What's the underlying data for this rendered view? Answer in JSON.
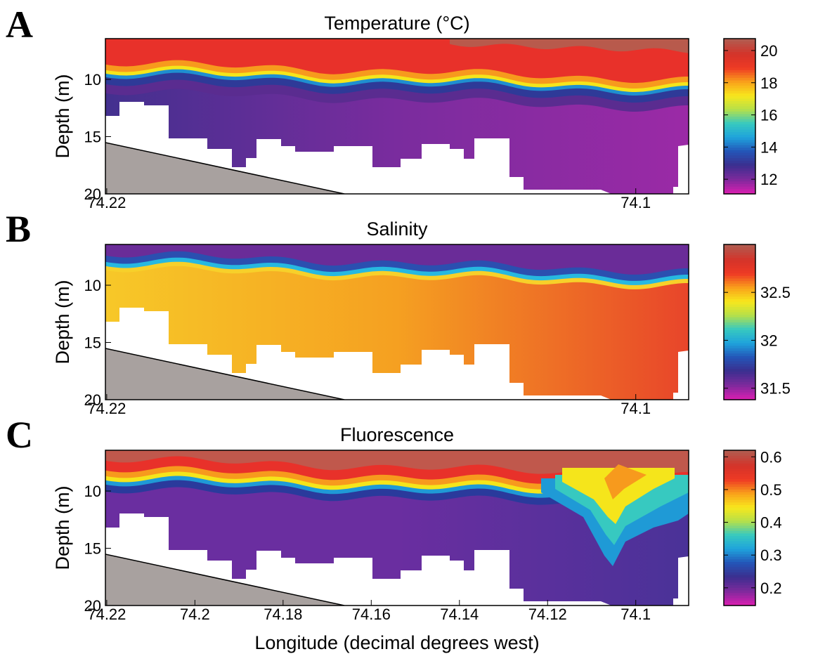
{
  "chart_data": [
    {
      "type": "contour",
      "panel_label": "A",
      "title": "Temperature (°C)",
      "ylabel": "Depth (m)",
      "xlim": [
        74.2203,
        74.088
      ],
      "xticks": [
        74.22,
        74.1
      ],
      "ylim": [
        20,
        6.44
      ],
      "yticks": [
        10,
        15,
        20
      ],
      "colorbar": {
        "clim": [
          11.09,
          20.74
        ],
        "ticks": [
          12,
          14,
          16,
          18,
          20
        ]
      },
      "colormap": [
        "#d61fb0",
        "#7b2a9c",
        "#3a2f8f",
        "#2456b8",
        "#1fa3dc",
        "#37c9c0",
        "#b5e04a",
        "#f8e71c",
        "#f9a11b",
        "#ee3a24",
        "#d4332a",
        "#b35a4e"
      ]
    },
    {
      "type": "contour",
      "panel_label": "B",
      "title": "Salinity",
      "ylabel": "Depth (m)",
      "xlim": [
        74.2203,
        74.088
      ],
      "xticks": [
        74.22,
        74.1
      ],
      "ylim": [
        20,
        6.44
      ],
      "yticks": [
        10,
        15,
        20
      ],
      "colorbar": {
        "clim": [
          31.38,
          33.0
        ],
        "ticks": [
          31.5,
          32,
          32.5
        ]
      },
      "colormap": [
        "#d61fb0",
        "#7b2a9c",
        "#3a2f8f",
        "#2456b8",
        "#1fa3dc",
        "#37c9c0",
        "#b5e04a",
        "#f8e71c",
        "#f9a11b",
        "#ee3a24",
        "#d4332a",
        "#b35a4e"
      ]
    },
    {
      "type": "contour",
      "panel_label": "C",
      "title": "Fluorescence",
      "ylabel": "Depth (m)",
      "xlabel": "Longitude (decimal degrees west)",
      "xlim": [
        74.2203,
        74.088
      ],
      "xticks": [
        74.22,
        74.2,
        74.18,
        74.16,
        74.14,
        74.12,
        74.1
      ],
      "ylim": [
        20,
        6.44
      ],
      "yticks": [
        10,
        15,
        20
      ],
      "colorbar": {
        "clim": [
          0.146,
          0.62
        ],
        "ticks": [
          0.2,
          0.3,
          0.4,
          0.5,
          0.6
        ]
      },
      "colormap": [
        "#d61fb0",
        "#7b2a9c",
        "#3a2f8f",
        "#2456b8",
        "#1fa3dc",
        "#37c9c0",
        "#b5e04a",
        "#f8e71c",
        "#f9a11b",
        "#ee3a24",
        "#d4332a",
        "#b35a4e"
      ]
    }
  ]
}
